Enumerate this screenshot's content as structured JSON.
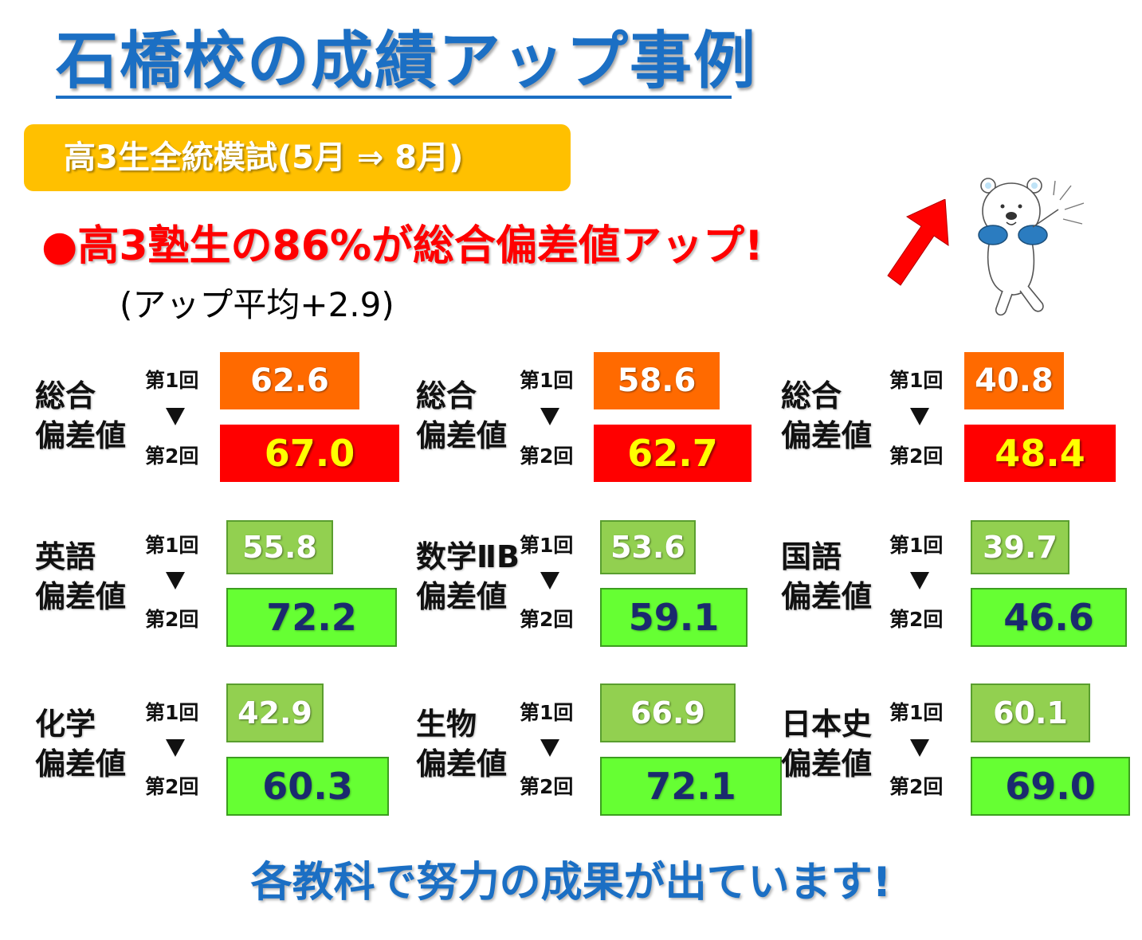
{
  "title": "石橋校の成績アップ事例",
  "exam_banner": "高3生全統模試(5月 ⇒ 8月)",
  "headline": "●高3塾生の86%が総合偏差値アップ!",
  "subline": "(アップ平均+2.9)",
  "round_labels": {
    "first": "第1回",
    "second": "第2回"
  },
  "cards": [
    {
      "subject_line1": "総合",
      "subject_line2": "偏差値",
      "first": "62.6",
      "second": "67.0"
    },
    {
      "subject_line1": "総合",
      "subject_line2": "偏差値",
      "first": "58.6",
      "second": "62.7"
    },
    {
      "subject_line1": "総合",
      "subject_line2": "偏差値",
      "first": "40.8",
      "second": "48.4"
    },
    {
      "subject_line1": "英語",
      "subject_line2": "偏差値",
      "first": "55.8",
      "second": "72.2"
    },
    {
      "subject_line1": "数学ⅡB",
      "subject_line2": "偏差値",
      "first": "53.6",
      "second": "59.1"
    },
    {
      "subject_line1": "国語",
      "subject_line2": "偏差値",
      "first": "39.7",
      "second": "46.6"
    },
    {
      "subject_line1": "化学",
      "subject_line2": "偏差値",
      "first": "42.9",
      "second": "60.3"
    },
    {
      "subject_line1": "生物",
      "subject_line2": "偏差値",
      "first": "66.9",
      "second": "72.1"
    },
    {
      "subject_line1": "日本史",
      "subject_line2": "偏差値",
      "first": "60.1",
      "second": "69.0"
    }
  ],
  "closing": "各教科で努力の成果が出ています!",
  "icons": {
    "arrow": "red-up-arrow-icon",
    "mascot": "bear-mascot-icon"
  },
  "colors": {
    "title_blue": "#1b6fc4",
    "banner_yellow": "#ffc000",
    "headline_red": "#ff0000",
    "overall_first": "#ff6a00",
    "overall_second": "#ff0000",
    "subject_first": "#92d050",
    "subject_second": "#66ff33"
  }
}
